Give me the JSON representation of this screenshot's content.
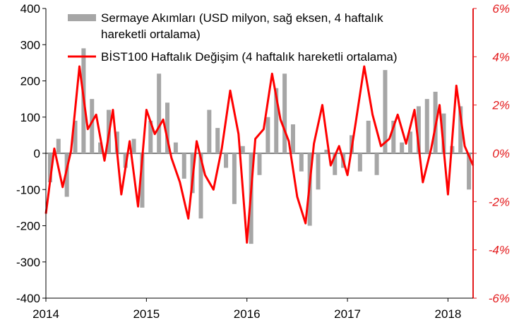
{
  "chart_data": {
    "type": "bar+line",
    "colors": {
      "bars": "#a6a6a6",
      "line": "#ff0000",
      "axis": "#000000",
      "right_axis": "#e31a1c"
    },
    "x_axis": {
      "ticks": [
        "2014",
        "2015",
        "2016",
        "2017",
        "2018"
      ],
      "range": [
        "2014-01",
        "2018-04"
      ]
    },
    "left_axis": {
      "ticks": [
        "400",
        "300",
        "200",
        "100",
        "0",
        "-100",
        "-200",
        "-300",
        "-400"
      ],
      "range": [
        -400,
        400
      ]
    },
    "right_axis": {
      "ticks": [
        "6%",
        "4%",
        "2%",
        "0%",
        "-2%",
        "-4%",
        "-6%"
      ],
      "range": [
        -6,
        6
      ],
      "unit": "%"
    },
    "legend": {
      "position": "top-center",
      "entries": [
        {
          "label_line1": "Sermaye Akımları (USD milyon, sağ eksen, 4 haftalık",
          "label_line2": "hareketli ortalama)",
          "kind": "bar"
        },
        {
          "label_line1": "BİST100 Haftalık Değişim (4 haftalık hareketli ortalama)",
          "kind": "line"
        }
      ]
    },
    "series": [
      {
        "name": "Sermaye Akımları (USD milyon, sağ eksen, 4 haftalık hareketli ortalama)",
        "axis": "left",
        "type": "bar",
        "x": [
          "2014-01",
          "2014-02",
          "2014-03",
          "2014-04",
          "2014-05",
          "2014-06",
          "2014-07",
          "2014-08",
          "2014-09",
          "2014-10",
          "2014-11",
          "2014-12",
          "2015-01",
          "2015-02",
          "2015-03",
          "2015-04",
          "2015-05",
          "2015-06",
          "2015-07",
          "2015-08",
          "2015-09",
          "2015-10",
          "2015-11",
          "2015-12",
          "2016-01",
          "2016-02",
          "2016-03",
          "2016-04",
          "2016-05",
          "2016-06",
          "2016-07",
          "2016-08",
          "2016-09",
          "2016-10",
          "2016-11",
          "2016-12",
          "2017-01",
          "2017-02",
          "2017-03",
          "2017-04",
          "2017-05",
          "2017-06",
          "2017-07",
          "2017-08",
          "2017-09",
          "2017-10",
          "2017-11",
          "2017-12",
          "2018-01",
          "2018-02",
          "2018-03"
        ],
        "values": [
          -80,
          40,
          -120,
          90,
          290,
          150,
          30,
          120,
          60,
          -40,
          40,
          -150,
          90,
          220,
          140,
          30,
          -70,
          -110,
          -180,
          120,
          70,
          -40,
          -140,
          20,
          -250,
          -60,
          100,
          180,
          220,
          80,
          -50,
          -200,
          -100,
          10,
          -60,
          -40,
          50,
          -50,
          90,
          -60,
          230,
          90,
          30,
          60,
          130,
          150,
          170,
          110,
          20,
          130,
          -100
        ]
      },
      {
        "name": "BİST100 Haftalık Değişim (4 haftalık hareketli ortalama)",
        "axis": "right",
        "type": "line",
        "x": [
          "2014-01",
          "2014-02",
          "2014-03",
          "2014-04",
          "2014-05",
          "2014-06",
          "2014-07",
          "2014-08",
          "2014-09",
          "2014-10",
          "2014-11",
          "2014-12",
          "2015-01",
          "2015-02",
          "2015-03",
          "2015-04",
          "2015-05",
          "2015-06",
          "2015-07",
          "2015-08",
          "2015-09",
          "2015-10",
          "2015-11",
          "2015-12",
          "2016-01",
          "2016-02",
          "2016-03",
          "2016-04",
          "2016-05",
          "2016-06",
          "2016-07",
          "2016-08",
          "2016-09",
          "2016-10",
          "2016-11",
          "2016-12",
          "2017-01",
          "2017-02",
          "2017-03",
          "2017-04",
          "2017-05",
          "2017-06",
          "2017-07",
          "2017-08",
          "2017-09",
          "2017-10",
          "2017-11",
          "2017-12",
          "2018-01",
          "2018-02",
          "2018-03",
          "2018-04"
        ],
        "values": [
          -2.5,
          0.2,
          -1.4,
          0.1,
          3.6,
          1.0,
          1.6,
          -0.3,
          1.8,
          -1.7,
          0.5,
          -2.2,
          1.8,
          0.8,
          1.4,
          -0.2,
          -1.2,
          -2.7,
          0.5,
          -0.9,
          -1.5,
          0.2,
          2.6,
          0.8,
          -3.7,
          0.6,
          1.0,
          3.3,
          1.4,
          0.5,
          -1.8,
          -2.9,
          0.4,
          2.0,
          -0.5,
          0.3,
          -0.9,
          1.3,
          3.6,
          1.6,
          0.3,
          0.6,
          1.6,
          0.4,
          1.8,
          -1.2,
          0.2,
          2.0,
          -1.7,
          2.8,
          0.3,
          -0.5
        ]
      }
    ]
  }
}
